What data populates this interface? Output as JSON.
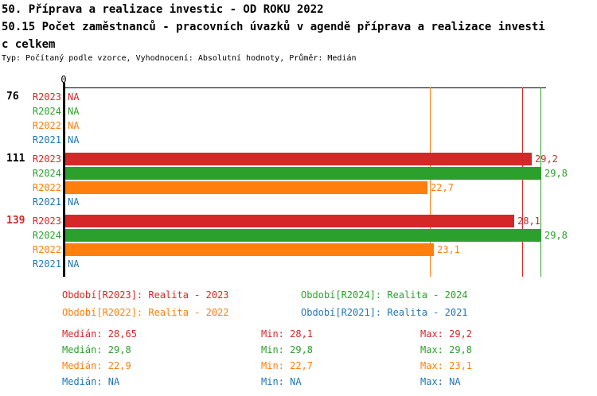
{
  "header": {
    "title_line1": "50. Příprava a realizace investic - OD ROKU 2022",
    "title_line2": "50.15 Počet zaměstnanců - pracovních úvazků v agendě příprava a realizace investi",
    "title_line3": "c celkem",
    "subtitle": "Typ: Počítaný podle vzorce, Vyhodnocení: Absolutní hodnoty, Průměr: Medián"
  },
  "colors": {
    "R2023": "#d62728",
    "R2024": "#2ca02c",
    "R2022": "#ff7f0e",
    "R2021": "#1f77b4",
    "axis": "#000000",
    "group_label": "#000000",
    "group_label_highlight": "#d62728"
  },
  "chart_data": {
    "type": "bar",
    "orientation": "horizontal",
    "title": "50.15 Počet zaměstnanců - pracovních úvazků v agendě příprava a realizace investic celkem",
    "axis_zero_label": "0",
    "na_label": "NA",
    "x_max": 29.8,
    "series_order": [
      "R2023",
      "R2024",
      "R2022",
      "R2021"
    ],
    "groups": [
      {
        "label": "76",
        "highlighted": false,
        "values": {
          "R2023": null,
          "R2024": null,
          "R2022": null,
          "R2021": null
        },
        "displays": {
          "R2023": "NA",
          "R2024": "NA",
          "R2022": "NA",
          "R2021": "NA"
        }
      },
      {
        "label": "111",
        "highlighted": false,
        "values": {
          "R2023": 29.2,
          "R2024": 29.8,
          "R2022": 22.7,
          "R2021": null
        },
        "displays": {
          "R2023": "29,2",
          "R2024": "29,8",
          "R2022": "22,7",
          "R2021": "NA"
        }
      },
      {
        "label": "139",
        "highlighted": true,
        "values": {
          "R2023": 28.1,
          "R2024": 29.8,
          "R2022": 23.1,
          "R2021": null
        },
        "displays": {
          "R2023": "28,1",
          "R2024": "29,8",
          "R2022": "23,1",
          "R2021": "NA"
        }
      }
    ],
    "median_lines": [
      {
        "series": "R2022",
        "value": 22.9
      },
      {
        "series": "R2023",
        "value": 28.65
      },
      {
        "series": "R2024",
        "value": 29.8
      }
    ]
  },
  "legend": {
    "columns": [
      [
        {
          "series": "R2023",
          "label": "Období[R2023]: Realita - 2023"
        },
        {
          "series": "R2022",
          "label": "Období[R2022]: Realita - 2022"
        }
      ],
      [
        {
          "series": "R2024",
          "label": "Období[R2024]: Realita - 2024"
        },
        {
          "series": "R2021",
          "label": "Období[R2021]: Realita - 2021"
        }
      ]
    ]
  },
  "stats": {
    "labels": {
      "median": "Medián",
      "min": "Min",
      "max": "Max"
    },
    "rows": [
      {
        "series": "R2023",
        "median": "28,65",
        "min": "28,1",
        "max": "29,2"
      },
      {
        "series": "R2024",
        "median": "29,8",
        "min": "29,8",
        "max": "29,8"
      },
      {
        "series": "R2022",
        "median": "22,9",
        "min": "22,7",
        "max": "23,1"
      },
      {
        "series": "R2021",
        "median": "NA",
        "min": "NA",
        "max": "NA"
      }
    ]
  }
}
